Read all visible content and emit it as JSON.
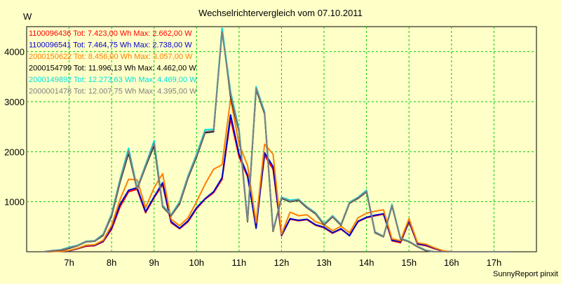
{
  "chart_data": {
    "type": "line",
    "title": "Wechselrichtervergleich vom 07.10.2011",
    "ylabel": "W",
    "xlabel": "",
    "footer": "SunnyReport pinxit",
    "ylim": [
      0,
      4500
    ],
    "xlim": [
      6.0,
      18.0
    ],
    "y_ticks": [
      1000,
      2000,
      3000,
      4000
    ],
    "x_ticks": [
      {
        "value": 7,
        "label": "7h"
      },
      {
        "value": 8,
        "label": "8h"
      },
      {
        "value": 9,
        "label": "9h"
      },
      {
        "value": 10,
        "label": "10h"
      },
      {
        "value": 11,
        "label": "11h"
      },
      {
        "value": 12,
        "label": "12h"
      },
      {
        "value": 13,
        "label": "13h"
      },
      {
        "value": 14,
        "label": "14h"
      },
      {
        "value": 15,
        "label": "15h"
      },
      {
        "value": 16,
        "label": "16h"
      },
      {
        "value": 17,
        "label": "17h"
      }
    ],
    "grid": true,
    "legend_position": "top-left",
    "x": [
      6.4,
      6.6,
      6.8,
      7.0,
      7.2,
      7.4,
      7.6,
      7.8,
      8.0,
      8.2,
      8.4,
      8.6,
      8.8,
      9.0,
      9.2,
      9.4,
      9.6,
      9.8,
      10.0,
      10.2,
      10.4,
      10.6,
      10.8,
      11.0,
      11.2,
      11.4,
      11.6,
      11.8,
      12.0,
      12.2,
      12.4,
      12.6,
      12.8,
      13.0,
      13.2,
      13.4,
      13.6,
      13.8,
      14.0,
      14.2,
      14.4,
      14.6,
      14.8,
      15.0,
      15.2,
      15.4,
      15.6,
      15.8,
      16.0,
      16.2,
      16.4,
      16.6,
      16.8,
      17.0,
      17.2,
      17.4
    ],
    "series": [
      {
        "name": "1100096436",
        "legend": "1100096436 Tot: 7.423,00 Wh Max: 2.662,00 W",
        "color": "#ff0000",
        "values": [
          0,
          5,
          10,
          20,
          60,
          110,
          120,
          200,
          450,
          900,
          1200,
          1250,
          780,
          1080,
          1340,
          580,
          460,
          600,
          860,
          1050,
          1180,
          1450,
          2662,
          1900,
          1500,
          550,
          1930,
          1650,
          320,
          650,
          620,
          640,
          530,
          480,
          370,
          450,
          330,
          600,
          680,
          720,
          750,
          220,
          180,
          600,
          150,
          120,
          60,
          10,
          0,
          0,
          0,
          0,
          0,
          0,
          0,
          0
        ]
      },
      {
        "name": "1100096541",
        "legend": "1100096541 Tot: 7.464,75 Wh Max: 2.738,00 W",
        "color": "#0000cc",
        "values": [
          0,
          5,
          10,
          20,
          60,
          120,
          130,
          210,
          480,
          950,
          1230,
          1280,
          800,
          1100,
          1380,
          600,
          470,
          620,
          880,
          1060,
          1200,
          1480,
          2738,
          1950,
          1530,
          470,
          1980,
          1700,
          330,
          660,
          630,
          650,
          540,
          490,
          380,
          460,
          320,
          610,
          690,
          730,
          760,
          230,
          200,
          620,
          160,
          130,
          70,
          10,
          0,
          0,
          0,
          0,
          0,
          0,
          0,
          0
        ]
      },
      {
        "name": "2000150622",
        "legend": "2000150622 Tot: 8.456,00 Wh Max: 3.057,00 W",
        "color": "#ff8000",
        "values": [
          0,
          5,
          10,
          25,
          70,
          130,
          140,
          230,
          530,
          1050,
          1450,
          1440,
          880,
          1280,
          1560,
          650,
          520,
          680,
          1000,
          1350,
          1650,
          1740,
          3057,
          2150,
          1730,
          580,
          2150,
          1950,
          350,
          790,
          720,
          740,
          600,
          540,
          420,
          510,
          380,
          680,
          770,
          810,
          840,
          260,
          220,
          660,
          180,
          150,
          80,
          20,
          0,
          0,
          0,
          0,
          0,
          0,
          0,
          0
        ]
      },
      {
        "name": "2000154799",
        "legend": "2000154799 Tot: 11.996,13 Wh Max: 4.462,00 W",
        "color": "#000000",
        "values": [
          0,
          20,
          30,
          70,
          120,
          200,
          210,
          330,
          720,
          1400,
          1980,
          1250,
          1700,
          2130,
          900,
          720,
          960,
          1480,
          1900,
          2380,
          2400,
          4462,
          3100,
          2400,
          600,
          3250,
          2760,
          410,
          1070,
          1000,
          1030,
          880,
          760,
          540,
          700,
          530,
          970,
          1070,
          1200,
          380,
          300,
          920,
          260,
          200,
          100,
          20,
          0,
          0,
          0,
          0,
          0,
          0,
          0,
          0,
          0,
          0
        ]
      },
      {
        "name": "2000149892",
        "legend": "2000149892 Tot: 12.273,63 Wh Max: 4.469,00 W",
        "color": "#00e0e0",
        "values": [
          0,
          25,
          40,
          90,
          130,
          210,
          220,
          350,
          760,
          1460,
          2070,
          1280,
          1740,
          2220,
          930,
          740,
          1000,
          1520,
          1950,
          2440,
          2450,
          4469,
          3200,
          2450,
          630,
          3300,
          2800,
          430,
          1090,
          1030,
          1050,
          900,
          780,
          560,
          720,
          550,
          990,
          1090,
          1230,
          400,
          310,
          950,
          270,
          210,
          110,
          30,
          0,
          0,
          0,
          0,
          0,
          0,
          0,
          0,
          0,
          0
        ]
      },
      {
        "name": "2000001478",
        "legend": "2000001478 Tot: 12.007,75 Wh Max: 4.395,00 W",
        "color": "#808080",
        "values": [
          0,
          22,
          35,
          80,
          125,
          205,
          215,
          340,
          740,
          1430,
          2020,
          1260,
          1720,
          2170,
          910,
          730,
          980,
          1500,
          1920,
          2400,
          2420,
          4395,
          3150,
          2420,
          610,
          3270,
          2780,
          420,
          1080,
          1010,
          1040,
          890,
          770,
          550,
          710,
          540,
          980,
          1080,
          1210,
          390,
          305,
          930,
          265,
          205,
          105,
          25,
          0,
          0,
          0,
          0,
          0,
          0,
          0,
          0,
          0,
          0
        ]
      }
    ]
  }
}
